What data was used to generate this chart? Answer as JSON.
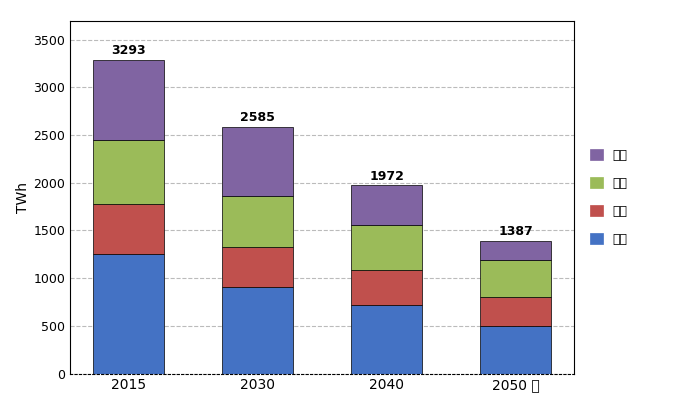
{
  "years": [
    "2015",
    "2030",
    "2040",
    "2050 年"
  ],
  "categories": [
    "産業",
    "家庭",
    "業務",
    "輸送"
  ],
  "values": {
    "産業": [
      1256,
      906,
      714,
      493
    ],
    "家庭": [
      520,
      419,
      368,
      306
    ],
    "業務": [
      671,
      541,
      474,
      394
    ],
    "輸送": [
      845,
      719,
      416,
      194
    ]
  },
  "totals": [
    3293,
    2585,
    1972,
    1387
  ],
  "colors": {
    "産業": "#4472C4",
    "家庭": "#C0504D",
    "業務": "#9BBB59",
    "輸送": "#8064A2"
  },
  "label_colors": {
    "産業": "#4472C4",
    "家庭": "#C0504D",
    "業務": "#9BBB59",
    "輸送": "#8064A2"
  },
  "ylabel": "TWh",
  "ylim": [
    0,
    3700
  ],
  "yticks": [
    0,
    500,
    1000,
    1500,
    2000,
    2500,
    3000,
    3500
  ],
  "bar_width": 0.55,
  "label_fontsize": 9,
  "legend_fontsize": 9,
  "total_fontsize": 9,
  "axis_fontsize": 10
}
